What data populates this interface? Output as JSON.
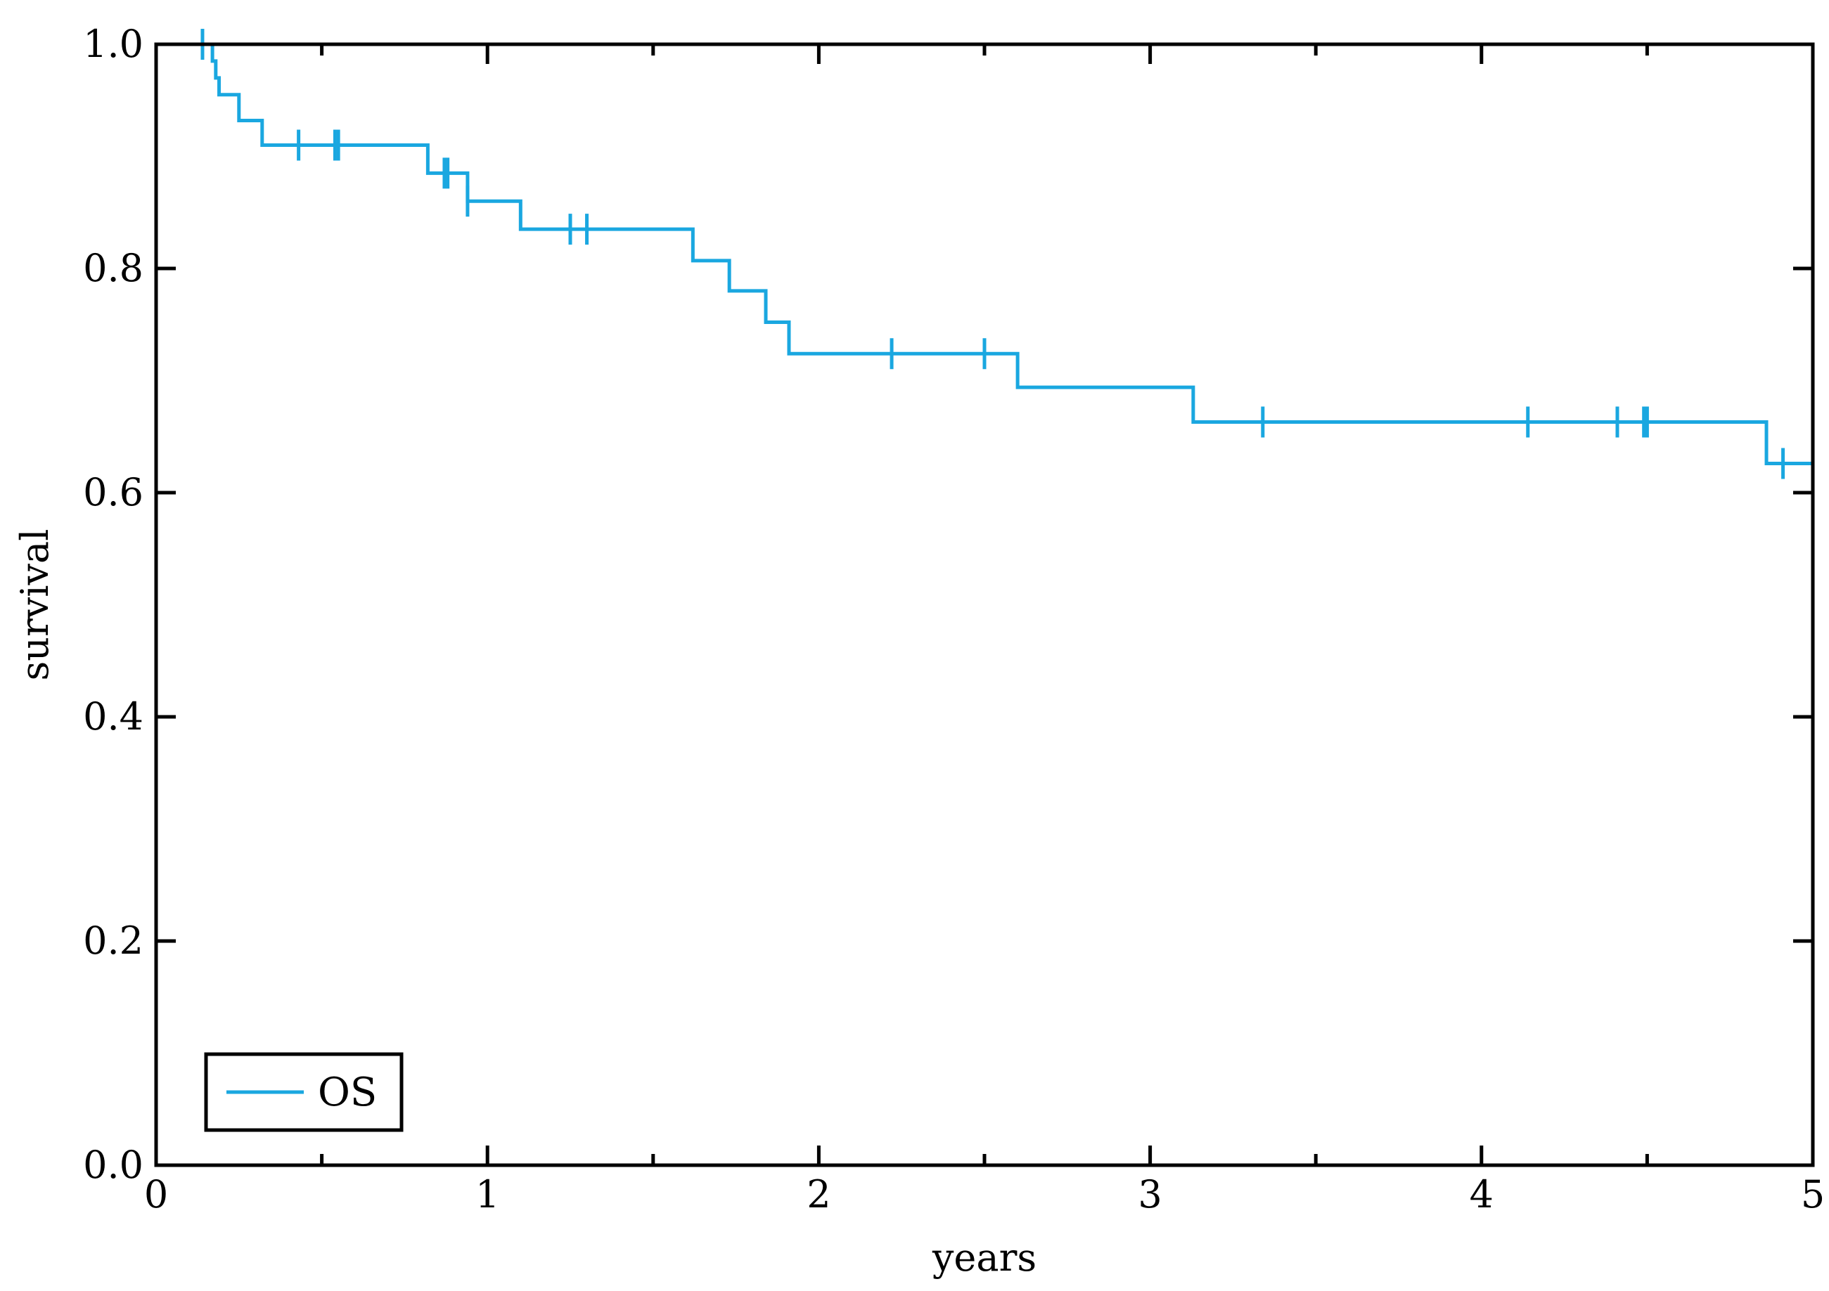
{
  "chart_data": {
    "type": "line",
    "title": "",
    "xlabel": "years",
    "ylabel": "survival",
    "xlim": [
      0,
      5
    ],
    "ylim": [
      0,
      1.0
    ],
    "x_ticks": [
      {
        "value": 0,
        "label": "0"
      },
      {
        "value": 1,
        "label": "1"
      },
      {
        "value": 2,
        "label": "2"
      },
      {
        "value": 3,
        "label": "3"
      },
      {
        "value": 4,
        "label": "4"
      },
      {
        "value": 5,
        "label": "5"
      }
    ],
    "y_ticks": [
      {
        "value": 0.0,
        "label": "0.0"
      },
      {
        "value": 0.2,
        "label": "0.2"
      },
      {
        "value": 0.4,
        "label": "0.4"
      },
      {
        "value": 0.6,
        "label": "0.6"
      },
      {
        "value": 0.8,
        "label": "0.8"
      },
      {
        "value": 1.0,
        "label": "1.0"
      }
    ],
    "grid": false,
    "legend_position": "bottom-left",
    "series": [
      {
        "name": "OS",
        "color": "#1aa7e0",
        "style": "step",
        "steps": [
          {
            "x": 0.0,
            "y": 1.0
          },
          {
            "x": 0.17,
            "y": 0.985
          },
          {
            "x": 0.18,
            "y": 0.97
          },
          {
            "x": 0.19,
            "y": 0.955
          },
          {
            "x": 0.25,
            "y": 0.932
          },
          {
            "x": 0.32,
            "y": 0.91
          },
          {
            "x": 0.82,
            "y": 0.885
          },
          {
            "x": 0.94,
            "y": 0.86
          },
          {
            "x": 1.1,
            "y": 0.835
          },
          {
            "x": 1.62,
            "y": 0.807
          },
          {
            "x": 1.73,
            "y": 0.78
          },
          {
            "x": 1.84,
            "y": 0.752
          },
          {
            "x": 1.91,
            "y": 0.724
          },
          {
            "x": 2.6,
            "y": 0.694
          },
          {
            "x": 3.13,
            "y": 0.663
          },
          {
            "x": 4.86,
            "y": 0.626
          }
        ],
        "x_end": 5.0,
        "censored": [
          {
            "x": 0.14,
            "y": 1.0
          },
          {
            "x": 0.43,
            "y": 0.91
          },
          {
            "x": 0.54,
            "y": 0.91
          },
          {
            "x": 0.55,
            "y": 0.91
          },
          {
            "x": 0.87,
            "y": 0.885
          },
          {
            "x": 0.88,
            "y": 0.885
          },
          {
            "x": 0.94,
            "y": 0.86
          },
          {
            "x": 1.25,
            "y": 0.835
          },
          {
            "x": 1.3,
            "y": 0.835
          },
          {
            "x": 2.22,
            "y": 0.724
          },
          {
            "x": 2.5,
            "y": 0.724
          },
          {
            "x": 3.34,
            "y": 0.663
          },
          {
            "x": 4.14,
            "y": 0.663
          },
          {
            "x": 4.41,
            "y": 0.663
          },
          {
            "x": 4.49,
            "y": 0.663
          },
          {
            "x": 4.5,
            "y": 0.663
          },
          {
            "x": 4.91,
            "y": 0.626
          },
          {
            "x": 5.0,
            "y": 0.626
          }
        ]
      }
    ]
  }
}
